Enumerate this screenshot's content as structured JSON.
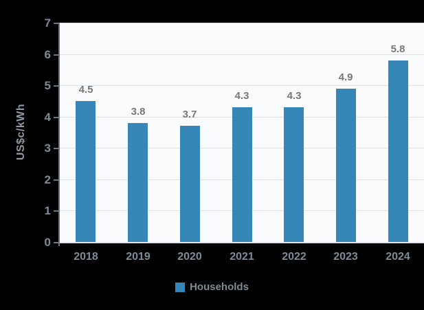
{
  "chart_data": {
    "type": "bar",
    "title": "",
    "categories": [
      "2018",
      "2019",
      "2020",
      "2021",
      "2022",
      "2023",
      "2024"
    ],
    "values": [
      4.5,
      3.8,
      3.7,
      4.3,
      4.3,
      4.9,
      5.8
    ],
    "data_labels": [
      "4.5",
      "3.8",
      "3.7",
      "4.3",
      "4.3",
      "4.9",
      "5.8"
    ],
    "xlabel": "",
    "ylabel": "US$c/kWh",
    "ylim": [
      0,
      7
    ],
    "ytick_labels": [
      "0",
      "1",
      "2",
      "3",
      "4",
      "5",
      "6",
      "7"
    ],
    "grid": true,
    "legend_position": "bottom",
    "legend": [
      {
        "label": "Households",
        "color": "#3786b8"
      }
    ],
    "colors": {
      "bar": "#3786b8",
      "figure_background": "#000000",
      "plot_background": "#fafbfc",
      "gridline": "#dce1e6",
      "axis_line": "#70767b",
      "baseline": "#dfe3e7",
      "axis_text": "#7e8c96",
      "value_label_text": "#75787b",
      "y_axis_title_text": "#8c9aa4"
    }
  }
}
